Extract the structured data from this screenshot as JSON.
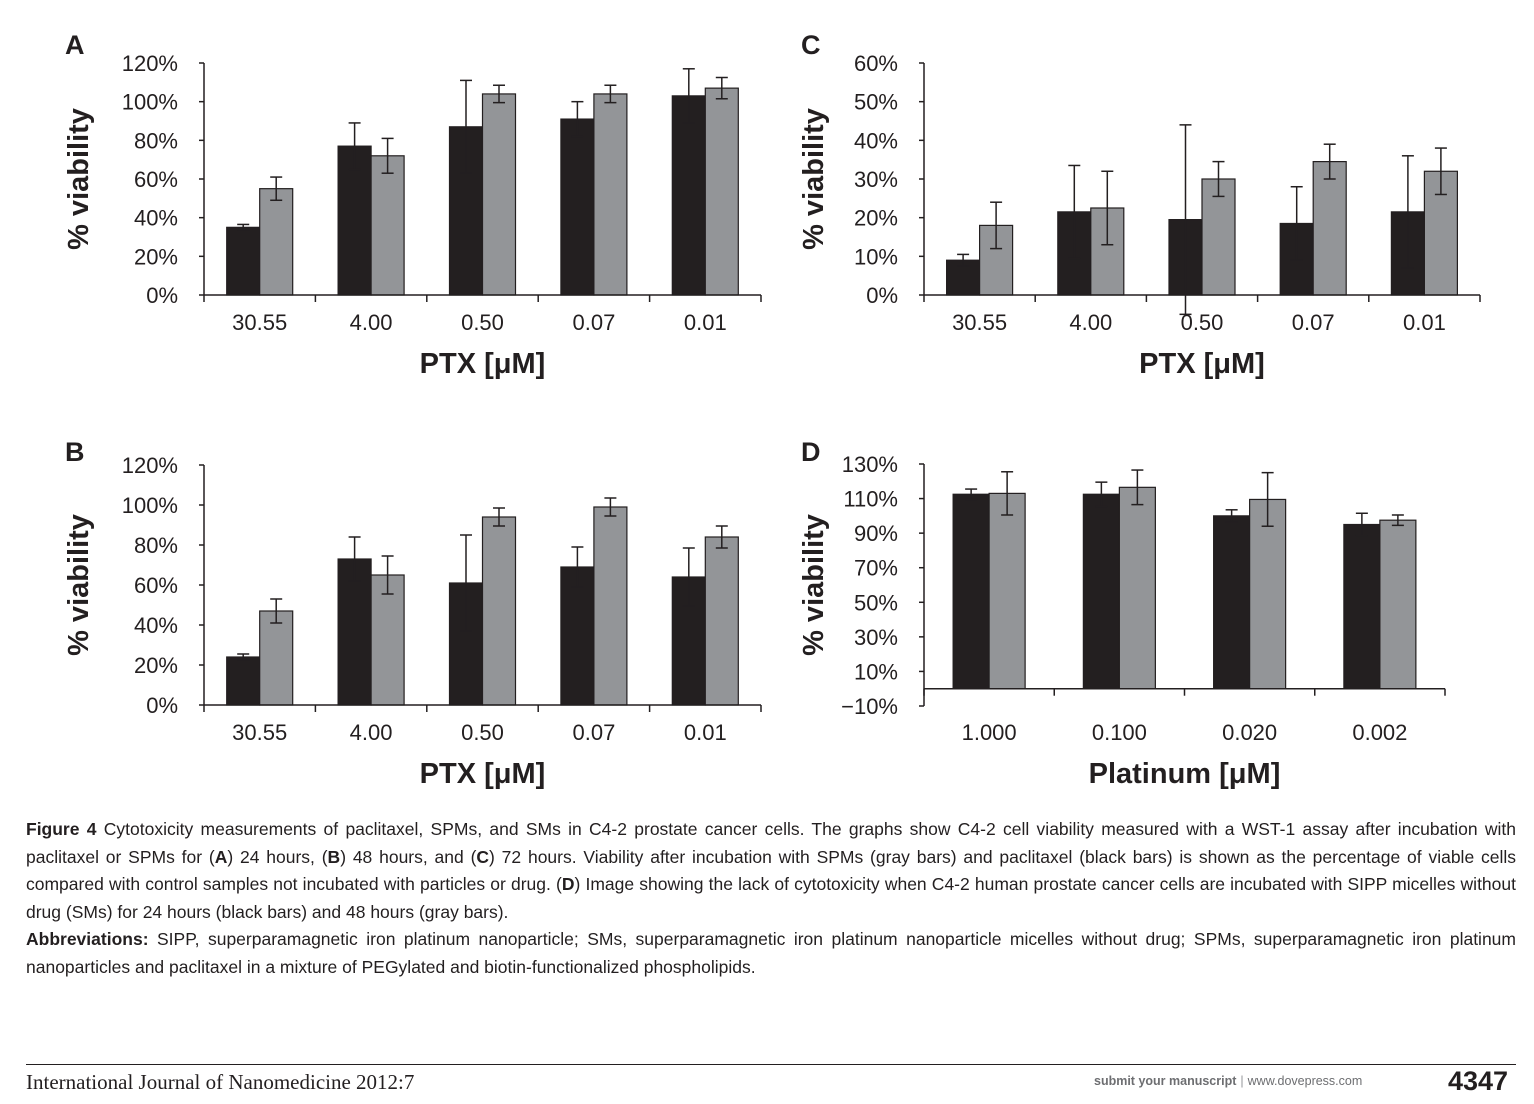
{
  "colors": {
    "series1": "#231f20",
    "series2": "#939598",
    "axis": "#231f20",
    "text": "#231f20"
  },
  "chart_data": [
    {
      "panel": "A",
      "type": "bar",
      "ylabel": "% viability",
      "xlabel": "PTX [μM]",
      "ylim": [
        0,
        120
      ],
      "yticks": [
        0,
        20,
        40,
        60,
        80,
        100,
        120
      ],
      "ytick_labels": [
        "0%",
        "20%",
        "40%",
        "60%",
        "80%",
        "100%",
        "120%"
      ],
      "categories": [
        "30.55",
        "4.00",
        "0.50",
        "0.07",
        "0.01"
      ],
      "series": [
        {
          "values": [
            35,
            77,
            87,
            91,
            103
          ],
          "errors": [
            1.5,
            12,
            24,
            9,
            14
          ]
        },
        {
          "values": [
            55,
            72,
            104,
            104,
            107
          ],
          "errors": [
            6,
            9,
            4.5,
            4.5,
            5.5
          ]
        }
      ]
    },
    {
      "panel": "C",
      "type": "bar",
      "ylabel": "% viability",
      "xlabel": "PTX [μM]",
      "ylim": [
        0,
        60
      ],
      "yticks": [
        0,
        10,
        20,
        30,
        40,
        50,
        60
      ],
      "ytick_labels": [
        "0%",
        "10%",
        "20%",
        "30%",
        "40%",
        "50%",
        "60%"
      ],
      "categories": [
        "30.55",
        "4.00",
        "0.50",
        "0.07",
        "0.01"
      ],
      "series": [
        {
          "values": [
            9,
            21.5,
            19.5,
            18.5,
            21.5
          ],
          "errors": [
            1.5,
            12,
            24.5,
            9.5,
            14.5
          ]
        },
        {
          "values": [
            18,
            22.5,
            30,
            34.5,
            32
          ],
          "errors": [
            6,
            9.5,
            4.5,
            4.5,
            6
          ]
        }
      ]
    },
    {
      "panel": "B",
      "type": "bar",
      "ylabel": "% viability",
      "xlabel": "PTX [μM]",
      "ylim": [
        0,
        120
      ],
      "yticks": [
        0,
        20,
        40,
        60,
        80,
        100,
        120
      ],
      "ytick_labels": [
        "0%",
        "20%",
        "40%",
        "60%",
        "80%",
        "100%",
        "120%"
      ],
      "categories": [
        "30.55",
        "4.00",
        "0.50",
        "0.07",
        "0.01"
      ],
      "series": [
        {
          "values": [
            24,
            73,
            61,
            69,
            64
          ],
          "errors": [
            1.5,
            11,
            24,
            10,
            14.5
          ]
        },
        {
          "values": [
            47,
            65,
            94,
            99,
            84
          ],
          "errors": [
            6,
            9.5,
            4.5,
            4.5,
            5.5
          ]
        }
      ]
    },
    {
      "panel": "D",
      "type": "bar",
      "ylabel": "% viability",
      "xlabel": "Platinum [μM]",
      "ylim": [
        -10,
        130
      ],
      "yticks": [
        -10,
        10,
        30,
        50,
        70,
        90,
        110,
        130
      ],
      "ytick_labels": [
        "−10%",
        "10%",
        "30%",
        "50%",
        "70%",
        "90%",
        "110%",
        "130%"
      ],
      "categories": [
        "1.000",
        "0.100",
        "0.020",
        "0.002"
      ],
      "series": [
        {
          "values": [
            112.5,
            112.5,
            100,
            95
          ],
          "errors": [
            3,
            7,
            3.5,
            6.5
          ]
        },
        {
          "values": [
            113,
            116.5,
            109.5,
            97.5
          ],
          "errors": [
            12.5,
            10,
            15.5,
            3
          ]
        }
      ]
    }
  ],
  "caption": {
    "figure_label": "Figure 4",
    "figure_text_1": " Cytotoxicity measurements of paclitaxel, SPMs, and SMs in C4-2 prostate cancer cells. The graphs show C4-2 cell viability measured with a WST-1 assay after incubation with paclitaxel or SPMs for (",
    "figure_letter_A": "A",
    "figure_text_2": ") 24 hours, (",
    "figure_letter_B": "B",
    "figure_text_3": ") 48 hours, and (",
    "figure_letter_C": "C",
    "figure_text_4": ") 72 hours. Viability after incubation with SPMs (gray bars) and paclitaxel (black bars) is shown as the percentage of viable cells compared with control samples not incubated with particles or drug. (",
    "figure_letter_D": "D",
    "figure_text_5": ") Image showing the lack of cytotoxicity when C4-2 human prostate cancer cells are incubated with SIPP micelles without drug (SMs) for 24 hours (black bars) and 48 hours (gray bars).",
    "abbrev_label": "Abbreviations:",
    "abbrev_text": " SIPP, superparamagnetic iron platinum nanoparticle; SMs, superparamagnetic iron platinum nanoparticle micelles without drug; SPMs, superparamagnetic iron platinum nanoparticles and paclitaxel in a mixture of PEGylated and biotin-functionalized phospholipids."
  },
  "footer": {
    "journal": "International Journal of Nanomedicine 2012:7",
    "submit": "submit your manuscript",
    "separator": "|",
    "website": "www.dovepress.com",
    "page_number": "4347"
  }
}
